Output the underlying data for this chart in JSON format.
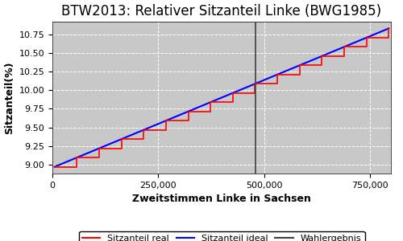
{
  "title": "BTW2013: Relativer Sitzanteil Linke (BWG1985)",
  "xlabel": "Zweitstimmen Linke in Sachsen",
  "ylabel": "Sitzanteil(%)",
  "x_min": 0,
  "x_max": 800000,
  "y_min": 8.88,
  "y_max": 10.92,
  "wahlergebnis_x": 480000,
  "x_start": 5000,
  "x_end": 795000,
  "seats_start": 8.97,
  "seats_end": 10.83,
  "num_steps": 15,
  "background_color": "#c8c8c8",
  "line_real_color": "red",
  "line_ideal_color": "blue",
  "line_wahlergebnis_color": "#404040",
  "grid_color": "white",
  "title_fontsize": 12,
  "label_fontsize": 9,
  "tick_fontsize": 8,
  "legend_fontsize": 8,
  "xticks": [
    0,
    250000,
    500000,
    750000
  ],
  "yticks": [
    9.0,
    9.25,
    9.5,
    9.75,
    10.0,
    10.25,
    10.5,
    10.75
  ]
}
